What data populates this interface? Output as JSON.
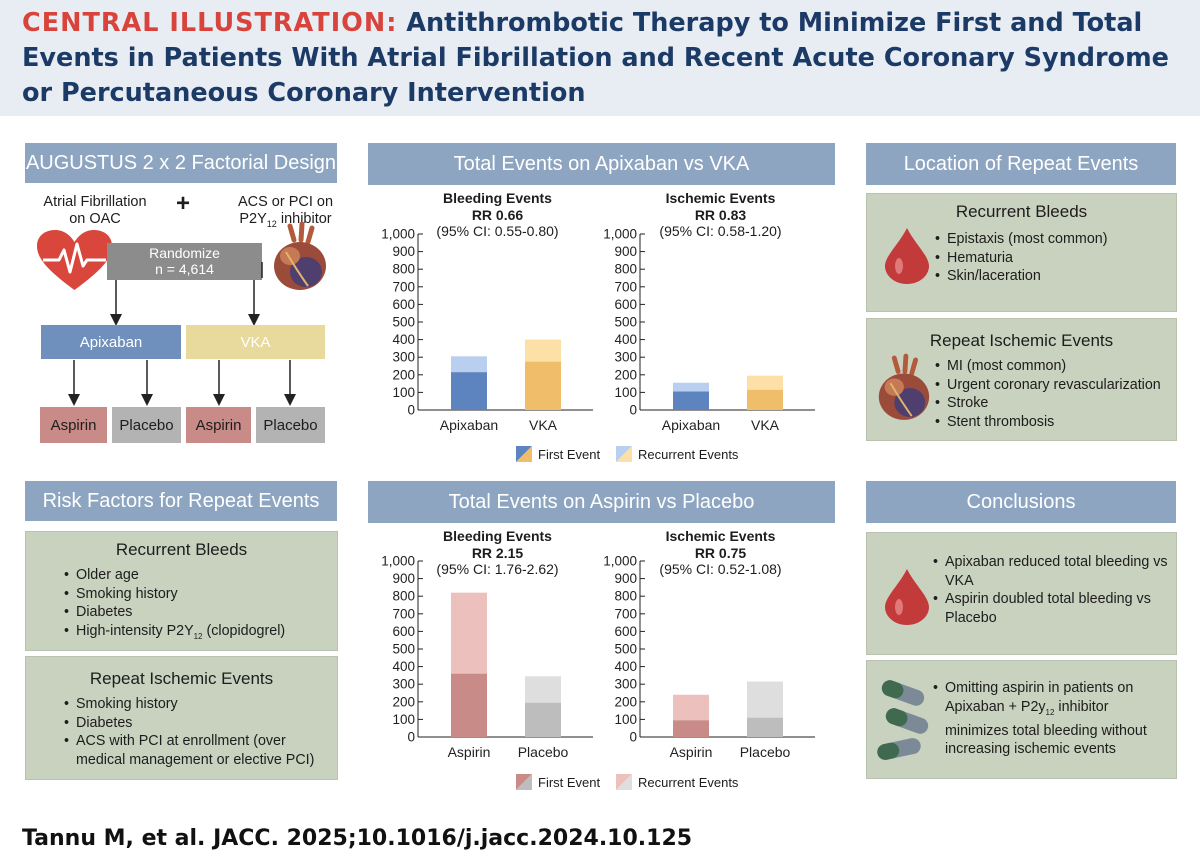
{
  "header": {
    "lead": "CENTRAL ILLUSTRATION:",
    "title": "Antithrombotic Therapy to Minimize First and Total Events in Patients With Atrial Fibrillation and Recent Acute Coronary Syndrome or Percutaneous Coronary Intervention"
  },
  "design": {
    "title": "AUGUSTUS 2 x 2 Factorial Design",
    "af_label_1": "Atrial Fibrillation",
    "af_label_2": "on OAC",
    "plus": "+",
    "acs_label_1": "ACS or PCI on",
    "acs_label_2a": "P2Y",
    "acs_label_2sub": "12",
    "acs_label_2b": " inhibitor",
    "randomize": "Randomize",
    "n": "n = 4,614",
    "arm1": "Apixaban",
    "arm2": "VKA",
    "sub1": "Aspirin",
    "sub2": "Placebo",
    "sub3": "Aspirin",
    "sub4": "Placebo"
  },
  "risk": {
    "title": "Risk Factors for Repeat Events",
    "bleeds_heading": "Recurrent Bleeds",
    "bleeds": [
      "Older age",
      "Smoking history",
      "Diabetes"
    ],
    "bleeds_last_a": "High-intensity P2Y",
    "bleeds_last_sub": "12",
    "bleeds_last_b": " (clopidogrel)",
    "ischemic_heading": "Repeat Ischemic Events",
    "ischemic": [
      "Smoking history",
      "Diabetes",
      "ACS with PCI at enrollment (over medical management or elective PCI)"
    ]
  },
  "apix_panel": {
    "title": "Total Events on Apixaban vs VKA",
    "bleed_head": "Bleeding Events",
    "bleed_rr": "RR 0.66",
    "bleed_ci": "(95% CI: 0.55-0.80)",
    "isch_head": "Ischemic Events",
    "isch_rr": "RR 0.83",
    "isch_ci": "(95% CI: 0.58-1.20)",
    "legend_first": "First Event",
    "legend_recurrent": "Recurrent Events"
  },
  "asp_panel": {
    "title": "Total Events on Aspirin vs Placebo",
    "bleed_head": "Bleeding Events",
    "bleed_rr": "RR 2.15",
    "bleed_ci": "(95% CI: 1.76-2.62)",
    "isch_head": "Ischemic Events",
    "isch_rr": "RR 0.75",
    "isch_ci": "(95% CI: 0.52-1.08)",
    "legend_first": "First Event",
    "legend_recurrent": "Recurrent Events"
  },
  "location": {
    "title": "Location of Repeat Events",
    "bleeds_heading": "Recurrent Bleeds",
    "bleeds": [
      "Epistaxis (most common)",
      "Hematuria",
      "Skin/laceration"
    ],
    "ischemic_heading": "Repeat Ischemic Events",
    "ischemic": [
      "MI (most common)",
      "Urgent coronary revascularization",
      "Stroke",
      "Stent thrombosis"
    ]
  },
  "conclusions": {
    "title": "Conclusions",
    "items1": [
      "Apixaban reduced total bleeding vs VKA",
      "Aspirin doubled total bleeding vs Placebo"
    ],
    "item2_a": "Omitting aspirin in patients on Apixaban + P2y",
    "item2_sub": "12",
    "item2_b": " inhibitor minimizes total bleeding without increasing ischemic events"
  },
  "footer": "Tannu M, et al. JACC. 2025;10.1016/j.jacc.2024.10.125",
  "chart_data": [
    {
      "type": "bar",
      "title": "Bleeding Events",
      "categories": [
        "Apixaban",
        "VKA"
      ],
      "series": [
        {
          "name": "First Event",
          "values": [
            215,
            275
          ]
        },
        {
          "name": "Recurrent Events",
          "values": [
            90,
            125
          ]
        }
      ],
      "ylim": [
        0,
        1000
      ],
      "yticks": [
        "0",
        "100",
        "200",
        "300",
        "400",
        "500",
        "600",
        "700",
        "800",
        "900",
        "1,000"
      ],
      "colors": {
        "first": [
          "#5d84bf",
          "#f0bd6a"
        ],
        "recurrent": [
          "#b9cff0",
          "#fde0a6"
        ]
      }
    },
    {
      "type": "bar",
      "title": "Ischemic Events",
      "categories": [
        "Apixaban",
        "VKA"
      ],
      "series": [
        {
          "name": "First Event",
          "values": [
            105,
            115
          ]
        },
        {
          "name": "Recurrent Events",
          "values": [
            50,
            80
          ]
        }
      ],
      "ylim": [
        0,
        1000
      ],
      "yticks": [
        "0",
        "100",
        "200",
        "300",
        "400",
        "500",
        "600",
        "700",
        "800",
        "900",
        "1,000"
      ],
      "colors": {
        "first": [
          "#5d84bf",
          "#f0bd6a"
        ],
        "recurrent": [
          "#b9cff0",
          "#fde0a6"
        ]
      }
    },
    {
      "type": "bar",
      "title": "Bleeding Events",
      "categories": [
        "Aspirin",
        "Placebo"
      ],
      "series": [
        {
          "name": "First Event",
          "values": [
            360,
            195
          ]
        },
        {
          "name": "Recurrent Events",
          "values": [
            460,
            150
          ]
        }
      ],
      "ylim": [
        0,
        1000
      ],
      "yticks": [
        "0",
        "100",
        "200",
        "300",
        "400",
        "500",
        "600",
        "700",
        "800",
        "900",
        "1,000"
      ],
      "colors": {
        "first": [
          "#c98b87",
          "#bdbdbd"
        ],
        "recurrent": [
          "#ecc0bd",
          "#dedede"
        ]
      }
    },
    {
      "type": "bar",
      "title": "Ischemic Events",
      "categories": [
        "Aspirin",
        "Placebo"
      ],
      "series": [
        {
          "name": "First Event",
          "values": [
            95,
            110
          ]
        },
        {
          "name": "Recurrent Events",
          "values": [
            145,
            205
          ]
        }
      ],
      "ylim": [
        0,
        1000
      ],
      "yticks": [
        "0",
        "100",
        "200",
        "300",
        "400",
        "500",
        "600",
        "700",
        "800",
        "900",
        "1,000"
      ],
      "colors": {
        "first": [
          "#c98b87",
          "#bdbdbd"
        ],
        "recurrent": [
          "#ecc0bd",
          "#dedede"
        ]
      }
    }
  ]
}
